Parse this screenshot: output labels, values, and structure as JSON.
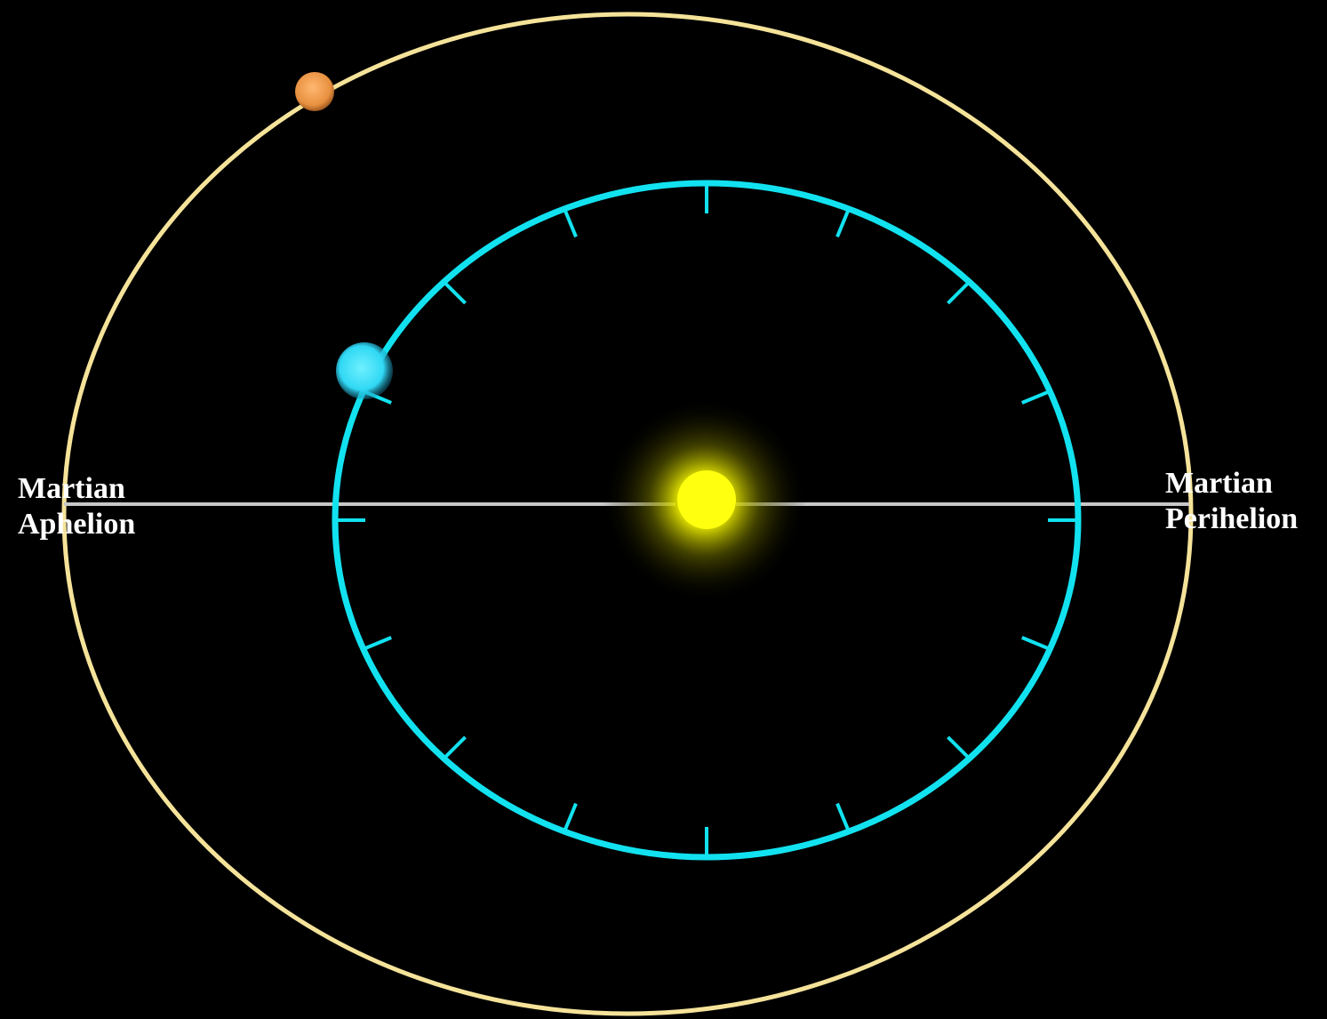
{
  "labels": {
    "aphelion": [
      "Martian",
      "Aphelion"
    ],
    "perihelion": [
      "Martian",
      "Perihelion"
    ]
  },
  "colors": {
    "background": "#000000",
    "mars_orbit": "#f5e39a",
    "earth_orbit": "#12e2f0",
    "apsis_line": "#c8c8c8",
    "sun": "#ffff10",
    "mars": "#f0a050",
    "earth": "#4fe8ff",
    "label_text": "#ffffff"
  },
  "bodies": {
    "sun": "sun",
    "earth": "earth",
    "mars": "mars"
  },
  "earth_orbit_tick_count": 16
}
